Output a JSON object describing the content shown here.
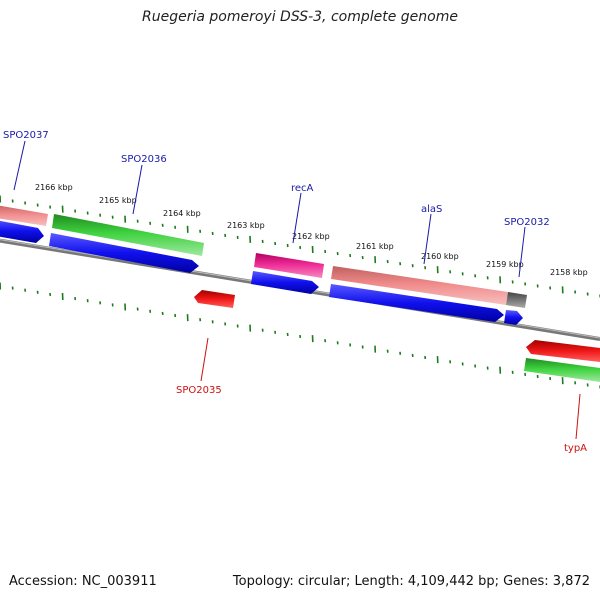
{
  "title": "Ruegeria pomeroyi DSS-3, complete genome",
  "accession": "Accession: NC_003911",
  "summary": "Topology: circular; Length: 4,109,442 bp; Genes: 3,872",
  "colors": {
    "backbone": "#7a7a7a",
    "ticks": "#1e7a1e",
    "label_forward": "#1a1aaa",
    "label_reverse": "#cc1111",
    "blue": "#1010ee",
    "green": "#2db82d",
    "salmon": "#ee8080",
    "magenta": "#e0188a",
    "red": "#ee1111",
    "gray": "#6a6a6a"
  },
  "kbp_labels": [
    {
      "text": "2166 kbp",
      "position_kbp": 2166
    },
    {
      "text": "2165 kbp",
      "position_kbp": 2165
    },
    {
      "text": "2164 kbp",
      "position_kbp": 2164
    },
    {
      "text": "2163 kbp",
      "position_kbp": 2163
    },
    {
      "text": "2162 kbp",
      "position_kbp": 2162
    },
    {
      "text": "2161 kbp",
      "position_kbp": 2161
    },
    {
      "text": "2160 kbp",
      "position_kbp": 2160
    },
    {
      "text": "2159 kbp",
      "position_kbp": 2159
    },
    {
      "text": "2158 kbp",
      "position_kbp": 2158
    }
  ],
  "gene_labels": [
    {
      "text": "SPO2037",
      "strand": "forward"
    },
    {
      "text": "SPO2036",
      "strand": "forward"
    },
    {
      "text": "recA",
      "strand": "forward"
    },
    {
      "text": "alaS",
      "strand": "forward"
    },
    {
      "text": "SPO2032",
      "strand": "forward"
    },
    {
      "text": "SPO2035",
      "strand": "reverse"
    },
    {
      "text": "typA",
      "strand": "reverse"
    }
  ]
}
